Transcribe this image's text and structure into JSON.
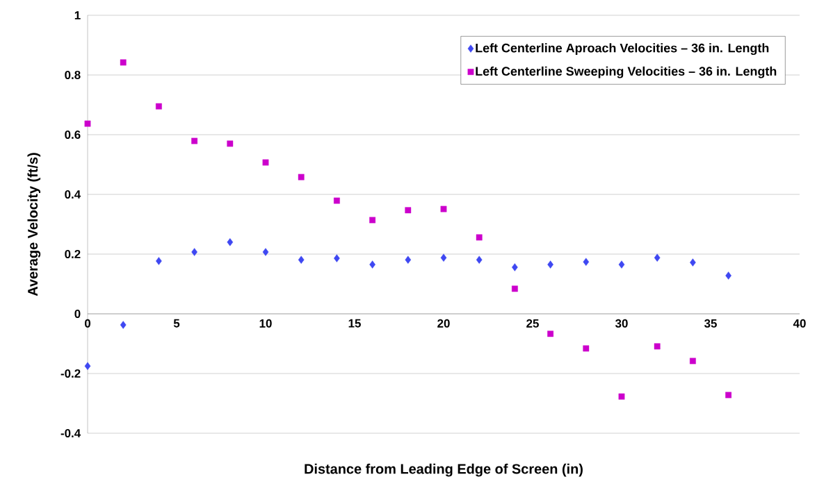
{
  "chart_data": {
    "type": "scatter",
    "xlabel": "Distance from Leading Edge of Screen (in)",
    "ylabel": "Average Velocity (ft/s)",
    "x": [
      0,
      2,
      4,
      6,
      8,
      10,
      12,
      14,
      16,
      18,
      20,
      22,
      24,
      26,
      28,
      30,
      32,
      34,
      36
    ],
    "series": [
      {
        "name": "Left Centerline Aproach Velocities – 36 in. Length",
        "color": "#3f48f2",
        "marker": "diamond",
        "values": [
          -0.175,
          -0.037,
          0.177,
          0.207,
          0.24,
          0.207,
          0.181,
          0.186,
          0.165,
          0.181,
          0.188,
          0.181,
          0.156,
          0.165,
          0.174,
          0.165,
          0.188,
          0.172,
          0.128
        ]
      },
      {
        "name": "Left Centerline Sweeping Velocities – 36 in. Length",
        "color": "#cc00cc",
        "marker": "square",
        "values": [
          0.637,
          0.842,
          0.695,
          0.579,
          0.57,
          0.507,
          0.458,
          0.379,
          0.314,
          0.347,
          0.351,
          0.256,
          0.084,
          -0.067,
          -0.116,
          -0.277,
          -0.109,
          -0.158,
          -0.272
        ]
      }
    ],
    "xlim": [
      0,
      40
    ],
    "xticks": [
      0,
      5,
      10,
      15,
      20,
      25,
      30,
      35,
      40
    ],
    "ylim": [
      -0.4,
      1
    ],
    "yticks": [
      -0.4,
      -0.2,
      0,
      0.2,
      0.4,
      0.6,
      0.8,
      1
    ],
    "grid": "y",
    "legend": "top right"
  }
}
